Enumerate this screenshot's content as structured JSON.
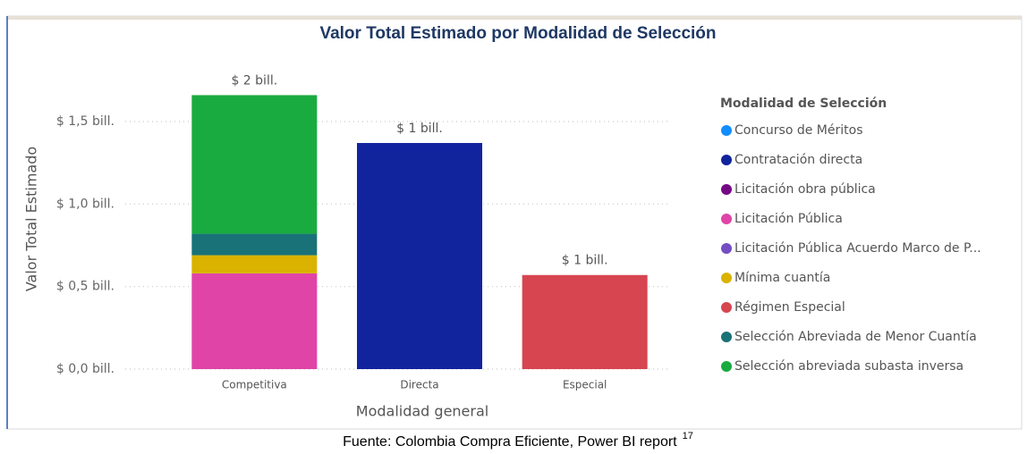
{
  "chart_data": {
    "type": "bar",
    "stacked": true,
    "title": "Valor Total Estimado por Modalidad de Selección",
    "x_label": "Modalidad general",
    "y_label": "Valor Total Estimado",
    "legend_title": "Modalidad de Selección",
    "legend": "right",
    "grid": true,
    "categories": [
      "Competitiva",
      "Directa",
      "Especial"
    ],
    "series": [
      {
        "name": "Concurso de Méritos",
        "color": "#118DFF",
        "values": [
          null,
          null,
          null
        ]
      },
      {
        "name": "Contratación directa",
        "color": "#12239E",
        "values": [
          null,
          1.37,
          null
        ]
      },
      {
        "name": "Licitación obra pública",
        "color": "#750985",
        "values": [
          null,
          null,
          null
        ]
      },
      {
        "name": "Licitación Pública",
        "color": "#E044A7",
        "values": [
          0.58,
          null,
          null
        ]
      },
      {
        "name": "Licitación Pública Acuerdo Marco de P...",
        "color": "#744EC2",
        "values": [
          null,
          null,
          null
        ]
      },
      {
        "name": "Mínima cuantía",
        "color": "#D9B300",
        "values": [
          0.11,
          null,
          null
        ]
      },
      {
        "name": "Régimen Especial",
        "color": "#D64550",
        "values": [
          null,
          null,
          0.57
        ]
      },
      {
        "name": "Selección Abreviada de Menor Cuantía",
        "color": "#197278",
        "values": [
          0.13,
          null,
          null
        ]
      },
      {
        "name": "Selección abreviada subasta inversa",
        "color": "#1AAB40",
        "values": [
          0.84,
          null,
          null
        ]
      }
    ],
    "total_labels": [
      "$ 2 bill.",
      "$ 1 bill.",
      "$ 1 bill."
    ],
    "ylim": [
      0,
      1.8
    ],
    "yticks": [
      {
        "value": 0,
        "label": "$ 0,0 bill."
      },
      {
        "value": 0.5,
        "label": "$ 0,5 bill."
      },
      {
        "value": 1.0,
        "label": "$ 1,0 bill."
      },
      {
        "value": 1.5,
        "label": "$ 1,5 bill."
      }
    ]
  },
  "caption": {
    "text": "Fuente: Colombia Compra Eficiente, Power BI report",
    "footnote": "17"
  }
}
